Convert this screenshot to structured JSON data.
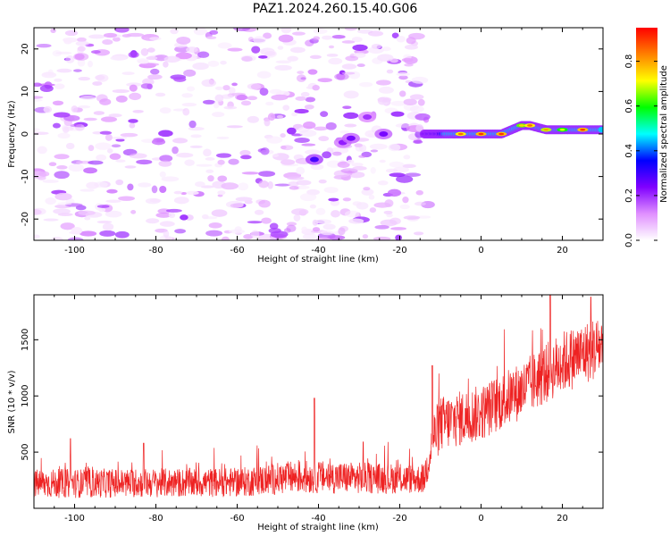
{
  "title": "PAZ1.2024.260.15.40.G06",
  "colors": {
    "snr_line": "#ee2222",
    "spectrogram_low": "#8a2be2",
    "colorbar": [
      "#ffffff",
      "#e090ff",
      "#8000ff",
      "#0000ff",
      "#00ffff",
      "#00ff00",
      "#ffff00",
      "#ff8000",
      "#ff0000"
    ]
  },
  "chart_data": [
    {
      "type": "heatmap",
      "name": "spectrogram",
      "xlabel": "Height of straight line (km)",
      "ylabel": "Frequency (Hz)",
      "xlim": [
        -110,
        30
      ],
      "ylim": [
        -25,
        25
      ],
      "xticks": [
        -100,
        -80,
        -60,
        -40,
        -20,
        0,
        20
      ],
      "yticks": [
        -20,
        -10,
        0,
        10,
        20
      ],
      "colorbar": {
        "label": "Normalized spectral amplitude",
        "range": [
          0,
          0.95
        ],
        "ticks": [
          0.0,
          0.2,
          0.4,
          0.6,
          0.8
        ]
      },
      "ridge": [
        {
          "x": -14,
          "f": 0,
          "amp": 0.25
        },
        {
          "x": -10,
          "f": 0,
          "amp": 0.3
        },
        {
          "x": -5,
          "f": 0,
          "amp": 0.85
        },
        {
          "x": 0,
          "f": 0,
          "amp": 0.9
        },
        {
          "x": 5,
          "f": 0,
          "amp": 0.9
        },
        {
          "x": 10,
          "f": 2,
          "amp": 0.75
        },
        {
          "x": 12,
          "f": 2,
          "amp": 0.85
        },
        {
          "x": 16,
          "f": 1,
          "amp": 0.8
        },
        {
          "x": 20,
          "f": 1,
          "amp": 0.7
        },
        {
          "x": 25,
          "f": 1,
          "amp": 0.9
        },
        {
          "x": 30,
          "f": 1,
          "amp": 0.5
        }
      ],
      "hotspots": [
        {
          "x": -41,
          "f": -6,
          "amp": 0.3
        },
        {
          "x": -34,
          "f": -2,
          "amp": 0.22
        },
        {
          "x": -28,
          "f": 4,
          "amp": 0.2
        },
        {
          "x": -24,
          "f": 0,
          "amp": 0.25
        },
        {
          "x": -32,
          "f": -1,
          "amp": 0.25
        }
      ]
    },
    {
      "type": "line",
      "name": "snr",
      "xlabel": "Height of straight line (km)",
      "ylabel": "SNR (10 * v/v)",
      "xlim": [
        -110,
        30
      ],
      "ylim": [
        0,
        1900
      ],
      "xticks": [
        -100,
        -80,
        -60,
        -40,
        -20,
        0,
        20
      ],
      "yticks": [
        500,
        1000,
        1500
      ],
      "trend": [
        {
          "x": -110,
          "mean": 220,
          "spread": 130
        },
        {
          "x": -60,
          "mean": 230,
          "spread": 130
        },
        {
          "x": -45,
          "mean": 280,
          "spread": 150
        },
        {
          "x": -14,
          "mean": 260,
          "spread": 130
        },
        {
          "x": -12,
          "mean": 600,
          "spread": 250
        },
        {
          "x": -10,
          "mean": 750,
          "spread": 250
        },
        {
          "x": 0,
          "mean": 850,
          "spread": 250
        },
        {
          "x": 10,
          "mean": 1050,
          "spread": 260
        },
        {
          "x": 20,
          "mean": 1300,
          "spread": 280
        },
        {
          "x": 30,
          "mean": 1450,
          "spread": 280
        }
      ],
      "peaks": [
        {
          "x": -41,
          "y": 980
        },
        {
          "x": -101,
          "y": 620
        },
        {
          "x": -83,
          "y": 580
        },
        {
          "x": -29,
          "y": 590
        },
        {
          "x": -12,
          "y": 1270
        },
        {
          "x": 17,
          "y": 1900
        },
        {
          "x": 27,
          "y": 1880
        }
      ]
    }
  ]
}
